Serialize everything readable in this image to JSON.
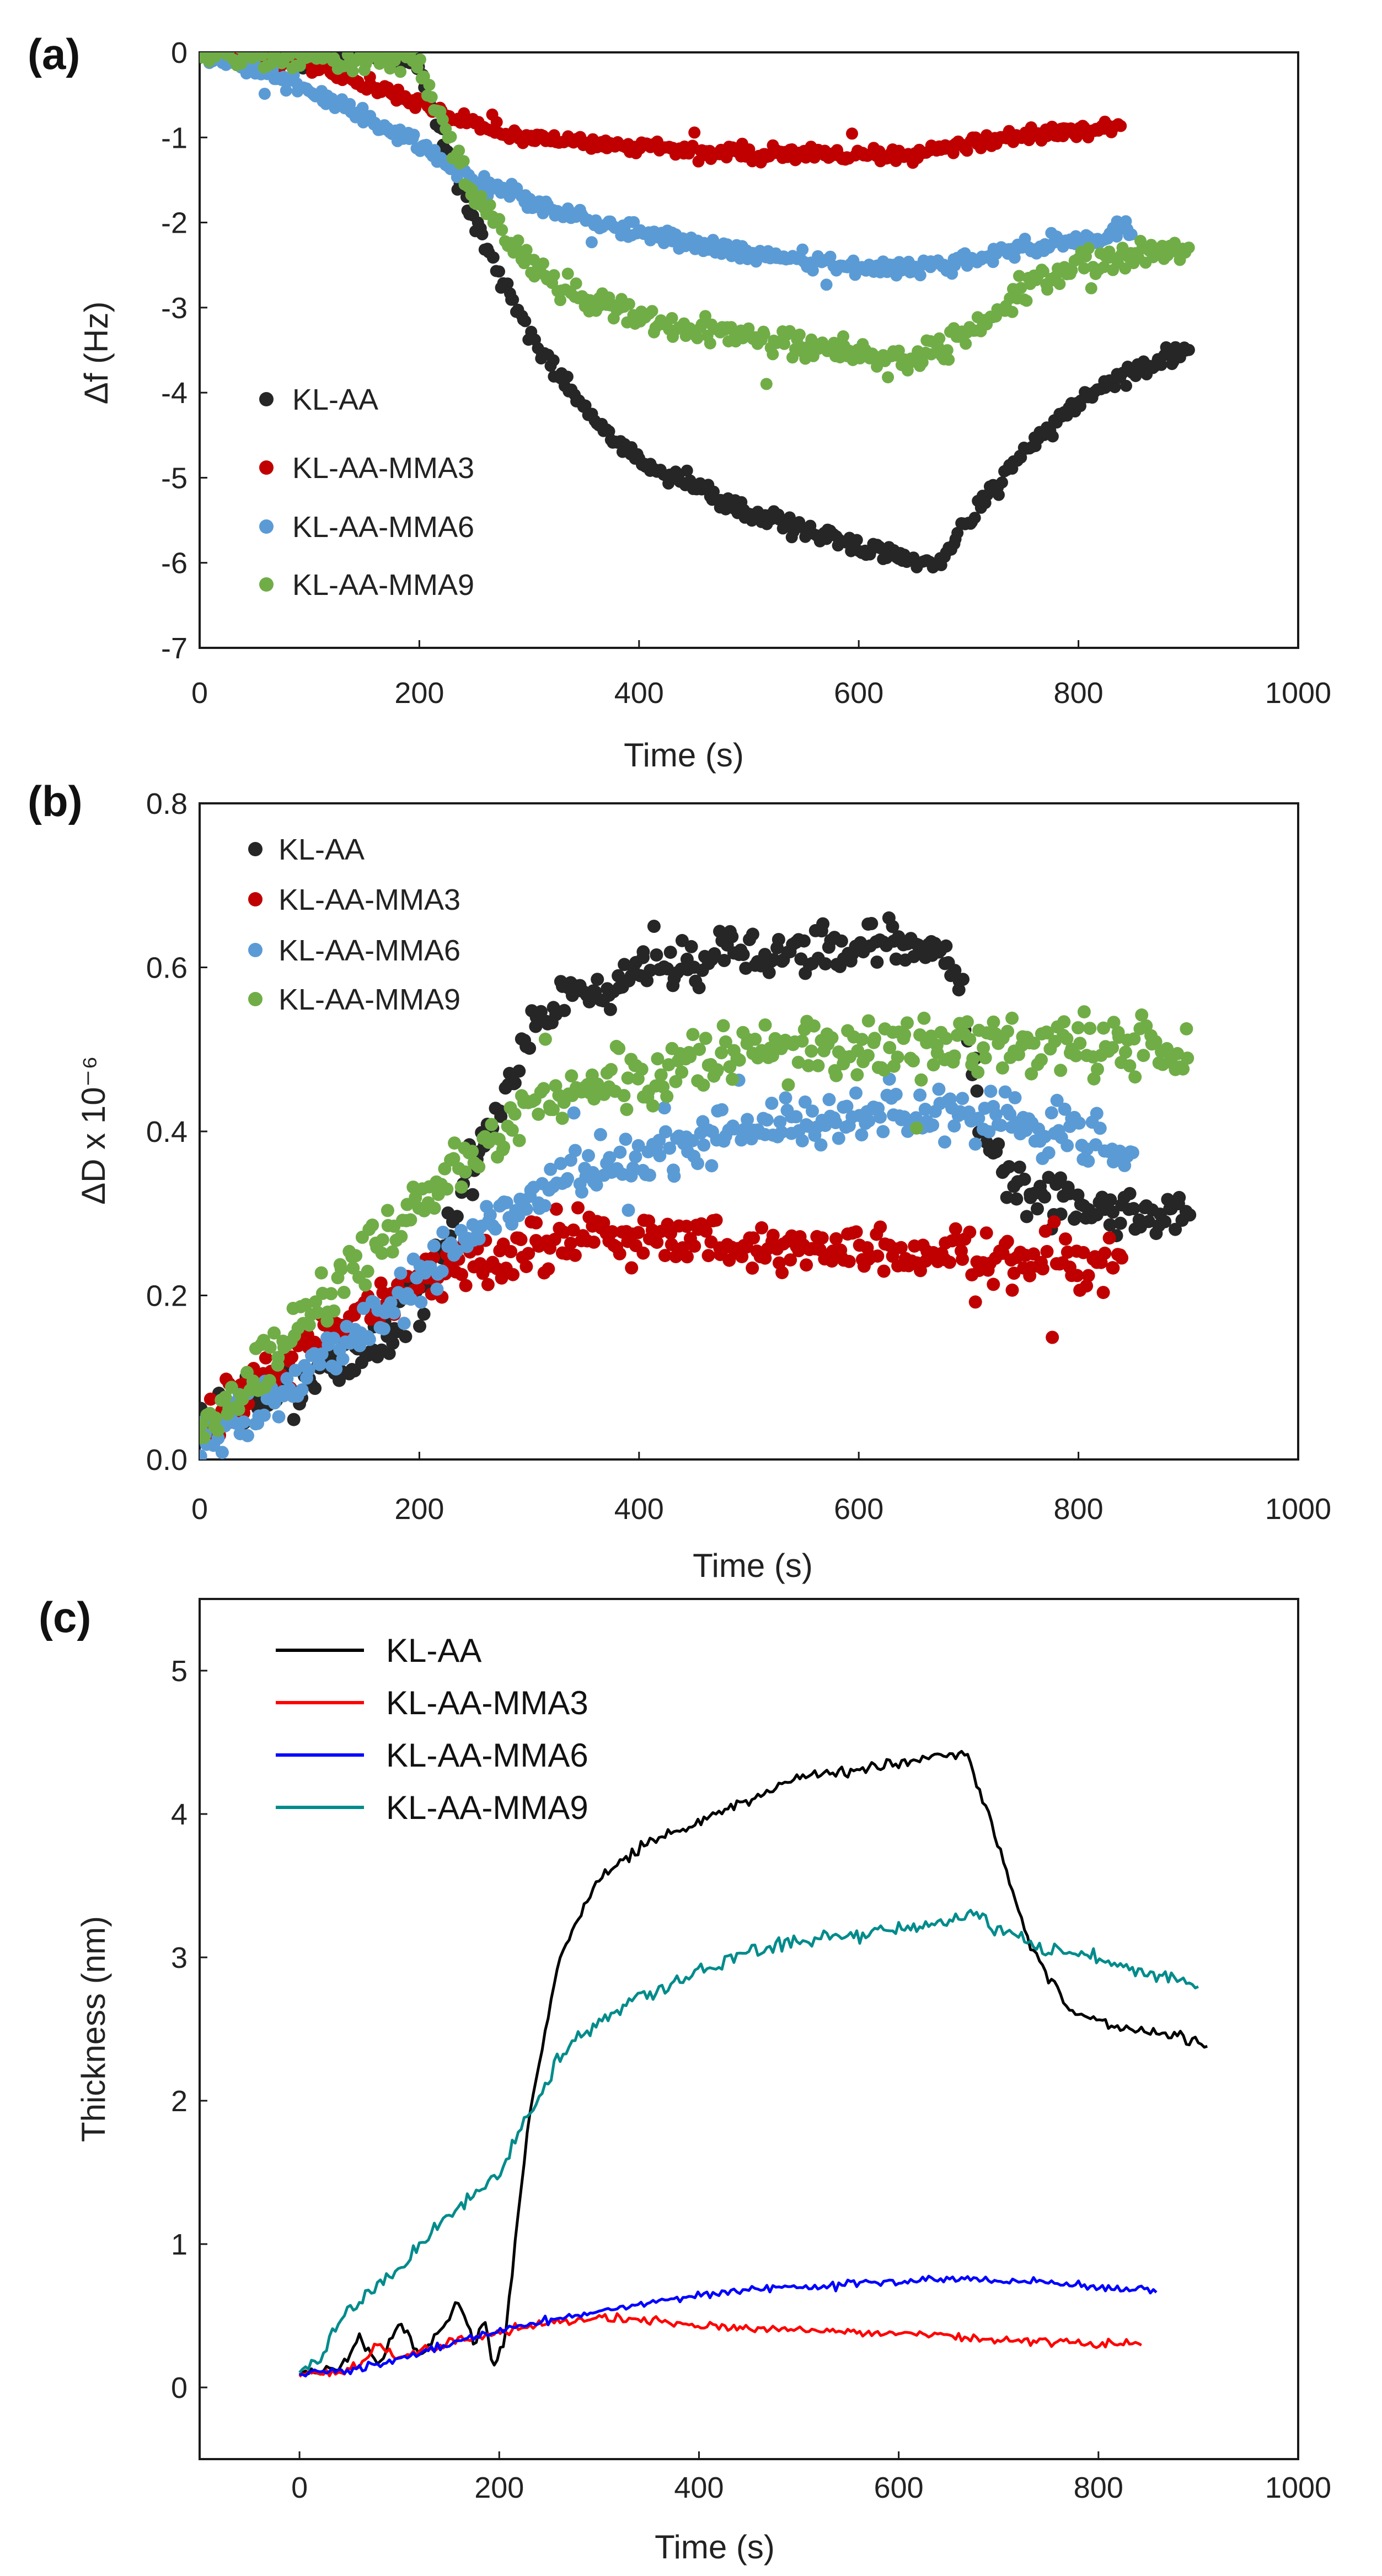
{
  "chart_data": [
    {
      "panel": "(a)",
      "type": "scatter",
      "xlabel": "Time (s)",
      "ylabel": "Δf (Hz)",
      "xlim": [
        0,
        1000
      ],
      "ylim": [
        -7,
        0
      ],
      "xticks": [
        0,
        200,
        400,
        600,
        800,
        1000
      ],
      "yticks": [
        0,
        -1,
        -2,
        -3,
        -4,
        -5,
        -6,
        -7
      ],
      "legend_position": "lower-left",
      "series": [
        {
          "name": "KL-AA",
          "color": "#262626",
          "x": [
            0,
            50,
            100,
            150,
            195,
            210,
            250,
            300,
            350,
            400,
            450,
            500,
            550,
            600,
            640,
            670,
            700,
            750,
            800,
            850,
            900
          ],
          "y": [
            0,
            0,
            0,
            -0.02,
            -0.05,
            -0.6,
            -2.0,
            -3.3,
            -4.2,
            -4.8,
            -5.1,
            -5.4,
            -5.6,
            -5.8,
            -5.95,
            -6.05,
            -5.5,
            -4.7,
            -4.1,
            -3.75,
            -3.5
          ],
          "noise": 0.1
        },
        {
          "name": "KL-AA-MMA3",
          "color": "#c00000",
          "x": [
            0,
            50,
            100,
            150,
            200,
            250,
            300,
            350,
            400,
            450,
            500,
            550,
            600,
            650,
            700,
            750,
            800,
            840
          ],
          "y": [
            0,
            -0.05,
            -0.15,
            -0.35,
            -0.6,
            -0.85,
            -1.0,
            -1.05,
            -1.1,
            -1.15,
            -1.2,
            -1.2,
            -1.2,
            -1.2,
            -1.1,
            -1.0,
            -0.9,
            -0.85
          ],
          "noise": 0.08
        },
        {
          "name": "KL-AA-MMA6",
          "color": "#5b9bd5",
          "x": [
            0,
            50,
            100,
            150,
            200,
            250,
            300,
            350,
            400,
            450,
            500,
            550,
            600,
            650,
            700,
            750,
            800,
            850
          ],
          "y": [
            0,
            -0.2,
            -0.45,
            -0.75,
            -1.1,
            -1.5,
            -1.75,
            -1.95,
            -2.1,
            -2.25,
            -2.35,
            -2.45,
            -2.5,
            -2.55,
            -2.45,
            -2.3,
            -2.2,
            -2.1
          ],
          "noise": 0.1
        },
        {
          "name": "KL-AA-MMA9",
          "color": "#70ad47",
          "x": [
            0,
            50,
            100,
            150,
            195,
            220,
            250,
            300,
            350,
            400,
            450,
            500,
            550,
            600,
            650,
            700,
            750,
            800,
            850,
            900
          ],
          "y": [
            0,
            -0.03,
            -0.05,
            -0.08,
            -0.1,
            -0.8,
            -1.7,
            -2.5,
            -2.9,
            -3.1,
            -3.25,
            -3.35,
            -3.45,
            -3.55,
            -3.65,
            -3.3,
            -2.8,
            -2.5,
            -2.4,
            -2.3
          ],
          "noise": 0.15
        }
      ]
    },
    {
      "panel": "(b)",
      "type": "scatter",
      "xlabel": "Time (s)",
      "ylabel": "ΔD x 10⁻⁶",
      "xlim": [
        0,
        1000
      ],
      "ylim": [
        0.0,
        0.8
      ],
      "xticks": [
        0,
        200,
        400,
        600,
        800,
        1000
      ],
      "yticks": [
        0.0,
        0.2,
        0.4,
        0.6,
        0.8
      ],
      "ytick_labels": [
        "0.0",
        "0.2",
        "0.4",
        "0.6",
        "0.8"
      ],
      "legend_position": "upper-left",
      "series": [
        {
          "name": "KL-AA",
          "color": "#262626",
          "x": [
            0,
            50,
            100,
            150,
            200,
            250,
            280,
            300,
            350,
            400,
            450,
            500,
            550,
            600,
            650,
            690,
            710,
            750,
            800,
            850,
            900
          ],
          "y": [
            0.05,
            0.08,
            0.1,
            0.13,
            0.2,
            0.35,
            0.45,
            0.52,
            0.57,
            0.59,
            0.61,
            0.62,
            0.63,
            0.63,
            0.63,
            0.6,
            0.4,
            0.33,
            0.31,
            0.3,
            0.3
          ],
          "noise": 0.03
        },
        {
          "name": "KL-AA-MMA3",
          "color": "#c00000",
          "x": [
            0,
            50,
            100,
            150,
            200,
            250,
            300,
            350,
            400,
            450,
            500,
            550,
            600,
            650,
            700,
            750,
            800,
            840
          ],
          "y": [
            0.04,
            0.09,
            0.14,
            0.18,
            0.22,
            0.24,
            0.26,
            0.27,
            0.27,
            0.27,
            0.26,
            0.26,
            0.25,
            0.25,
            0.25,
            0.24,
            0.24,
            0.24
          ],
          "noise": 0.03
        },
        {
          "name": "KL-AA-MMA6",
          "color": "#5b9bd5",
          "x": [
            0,
            50,
            100,
            150,
            200,
            250,
            300,
            350,
            400,
            450,
            500,
            550,
            600,
            650,
            700,
            750,
            800,
            850
          ],
          "y": [
            0.02,
            0.06,
            0.11,
            0.16,
            0.22,
            0.28,
            0.32,
            0.35,
            0.37,
            0.39,
            0.4,
            0.41,
            0.42,
            0.42,
            0.42,
            0.41,
            0.4,
            0.36
          ],
          "noise": 0.03
        },
        {
          "name": "KL-AA-MMA9",
          "color": "#70ad47",
          "x": [
            0,
            50,
            100,
            150,
            200,
            250,
            300,
            350,
            400,
            450,
            500,
            550,
            600,
            650,
            700,
            750,
            800,
            850,
            900
          ],
          "y": [
            0.03,
            0.1,
            0.18,
            0.25,
            0.32,
            0.38,
            0.42,
            0.45,
            0.47,
            0.48,
            0.49,
            0.5,
            0.5,
            0.51,
            0.51,
            0.51,
            0.51,
            0.51,
            0.5
          ],
          "noise": 0.035
        }
      ]
    },
    {
      "panel": "(c)",
      "type": "line",
      "xlabel": "Time (s)",
      "ylabel": "Thickness (nm)",
      "xlim": [
        -100,
        1000
      ],
      "ylim": [
        -0.5,
        5.5
      ],
      "xticks": [
        0,
        200,
        400,
        600,
        800,
        1000
      ],
      "yticks": [
        0,
        1,
        2,
        3,
        4,
        5
      ],
      "legend_position": "upper-left",
      "series": [
        {
          "name": "KL-AA",
          "color": "#000000",
          "x": [
            0,
            40,
            60,
            80,
            100,
            120,
            140,
            160,
            175,
            185,
            195,
            205,
            230,
            260,
            300,
            350,
            400,
            450,
            500,
            550,
            600,
            640,
            665,
            690,
            730,
            770,
            800,
            850,
            900,
            910
          ],
          "y": [
            0.1,
            0.12,
            0.35,
            0.15,
            0.45,
            0.2,
            0.4,
            0.6,
            0.3,
            0.45,
            0.15,
            0.3,
            1.9,
            3.0,
            3.55,
            3.8,
            3.95,
            4.1,
            4.25,
            4.3,
            4.35,
            4.4,
            4.45,
            4.0,
            3.1,
            2.65,
            2.55,
            2.48,
            2.4,
            2.38
          ],
          "noise": 0.04
        },
        {
          "name": "KL-AA-MMA3",
          "color": "#ff0000",
          "x": [
            0,
            30,
            60,
            80,
            100,
            150,
            200,
            250,
            300,
            350,
            400,
            500,
            600,
            700,
            800,
            845
          ],
          "y": [
            0.1,
            0.1,
            0.15,
            0.3,
            0.2,
            0.32,
            0.38,
            0.45,
            0.48,
            0.47,
            0.43,
            0.4,
            0.38,
            0.33,
            0.3,
            0.3
          ],
          "noise": 0.03
        },
        {
          "name": "KL-AA-MMA6",
          "color": "#0000ff",
          "x": [
            0,
            50,
            100,
            150,
            200,
            250,
            300,
            350,
            400,
            450,
            500,
            550,
            600,
            650,
            700,
            750,
            800,
            860
          ],
          "y": [
            0.1,
            0.12,
            0.2,
            0.3,
            0.4,
            0.47,
            0.53,
            0.59,
            0.64,
            0.68,
            0.7,
            0.72,
            0.74,
            0.76,
            0.75,
            0.73,
            0.7,
            0.68
          ],
          "noise": 0.025
        },
        {
          "name": "KL-AA-MMA9",
          "color": "#008b8b",
          "x": [
            0,
            20,
            40,
            60,
            80,
            100,
            150,
            200,
            230,
            260,
            300,
            350,
            400,
            450,
            500,
            550,
            600,
            650,
            680,
            700,
            750,
            800,
            850,
            900
          ],
          "y": [
            0.1,
            0.2,
            0.45,
            0.6,
            0.72,
            0.82,
            1.2,
            1.5,
            1.9,
            2.3,
            2.55,
            2.75,
            2.9,
            3.05,
            3.1,
            3.15,
            3.2,
            3.25,
            3.3,
            3.2,
            3.05,
            3.0,
            2.9,
            2.8
          ],
          "noise": 0.05
        }
      ]
    }
  ]
}
